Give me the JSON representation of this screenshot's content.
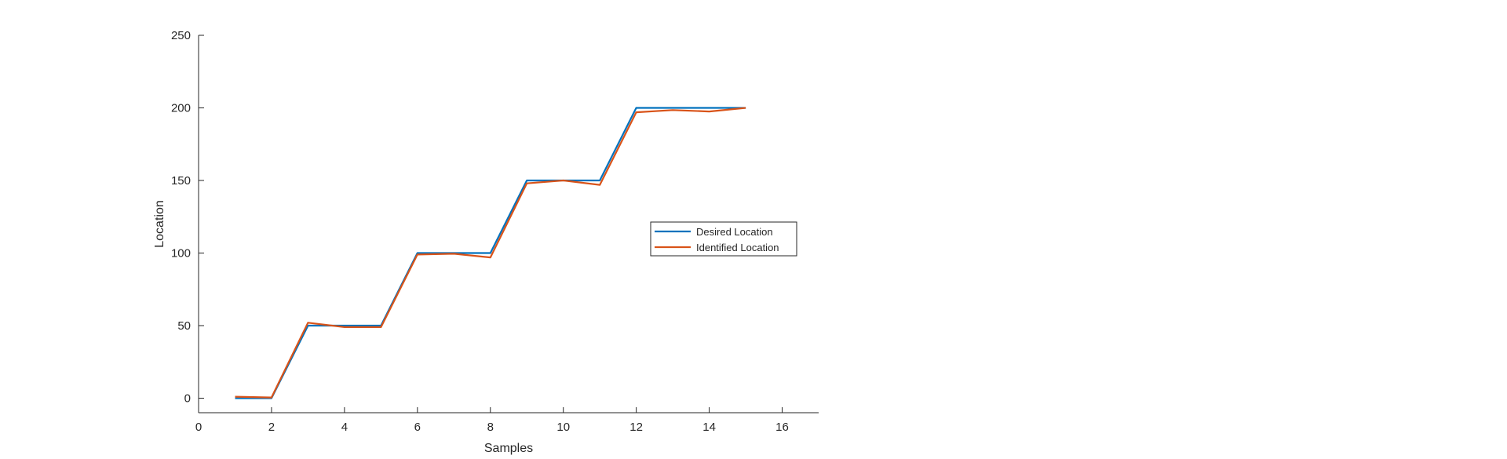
{
  "chart_data": {
    "type": "line",
    "title": "",
    "xlabel": "Samples",
    "ylabel": "Location",
    "xlim": [
      0,
      17
    ],
    "ylim": [
      -10,
      250
    ],
    "xticks": [
      0,
      2,
      4,
      6,
      8,
      10,
      12,
      14,
      16
    ],
    "yticks": [
      0,
      50,
      100,
      150,
      200,
      250
    ],
    "xtick_labels": [
      "0",
      "2",
      "4",
      "6",
      "8",
      "10",
      "12",
      "14",
      "16"
    ],
    "ytick_labels": [
      "0",
      "50",
      "100",
      "150",
      "200",
      "250"
    ],
    "grid": false,
    "legend_position": "right-middle",
    "x": [
      1,
      2,
      3,
      4,
      5,
      6,
      7,
      8,
      9,
      10,
      11,
      12,
      13,
      14,
      15
    ],
    "series": [
      {
        "name": "Desired Location",
        "color": "#0072BD",
        "values": [
          0,
          0,
          50,
          50,
          50,
          100,
          100,
          100,
          150,
          150,
          150,
          200,
          200,
          200,
          200
        ]
      },
      {
        "name": "Identified Location",
        "color": "#D95319",
        "values": [
          1,
          0.5,
          52,
          49,
          49,
          99,
          99.5,
          97,
          148,
          150,
          147,
          197,
          198.5,
          197.5,
          200
        ]
      }
    ]
  }
}
